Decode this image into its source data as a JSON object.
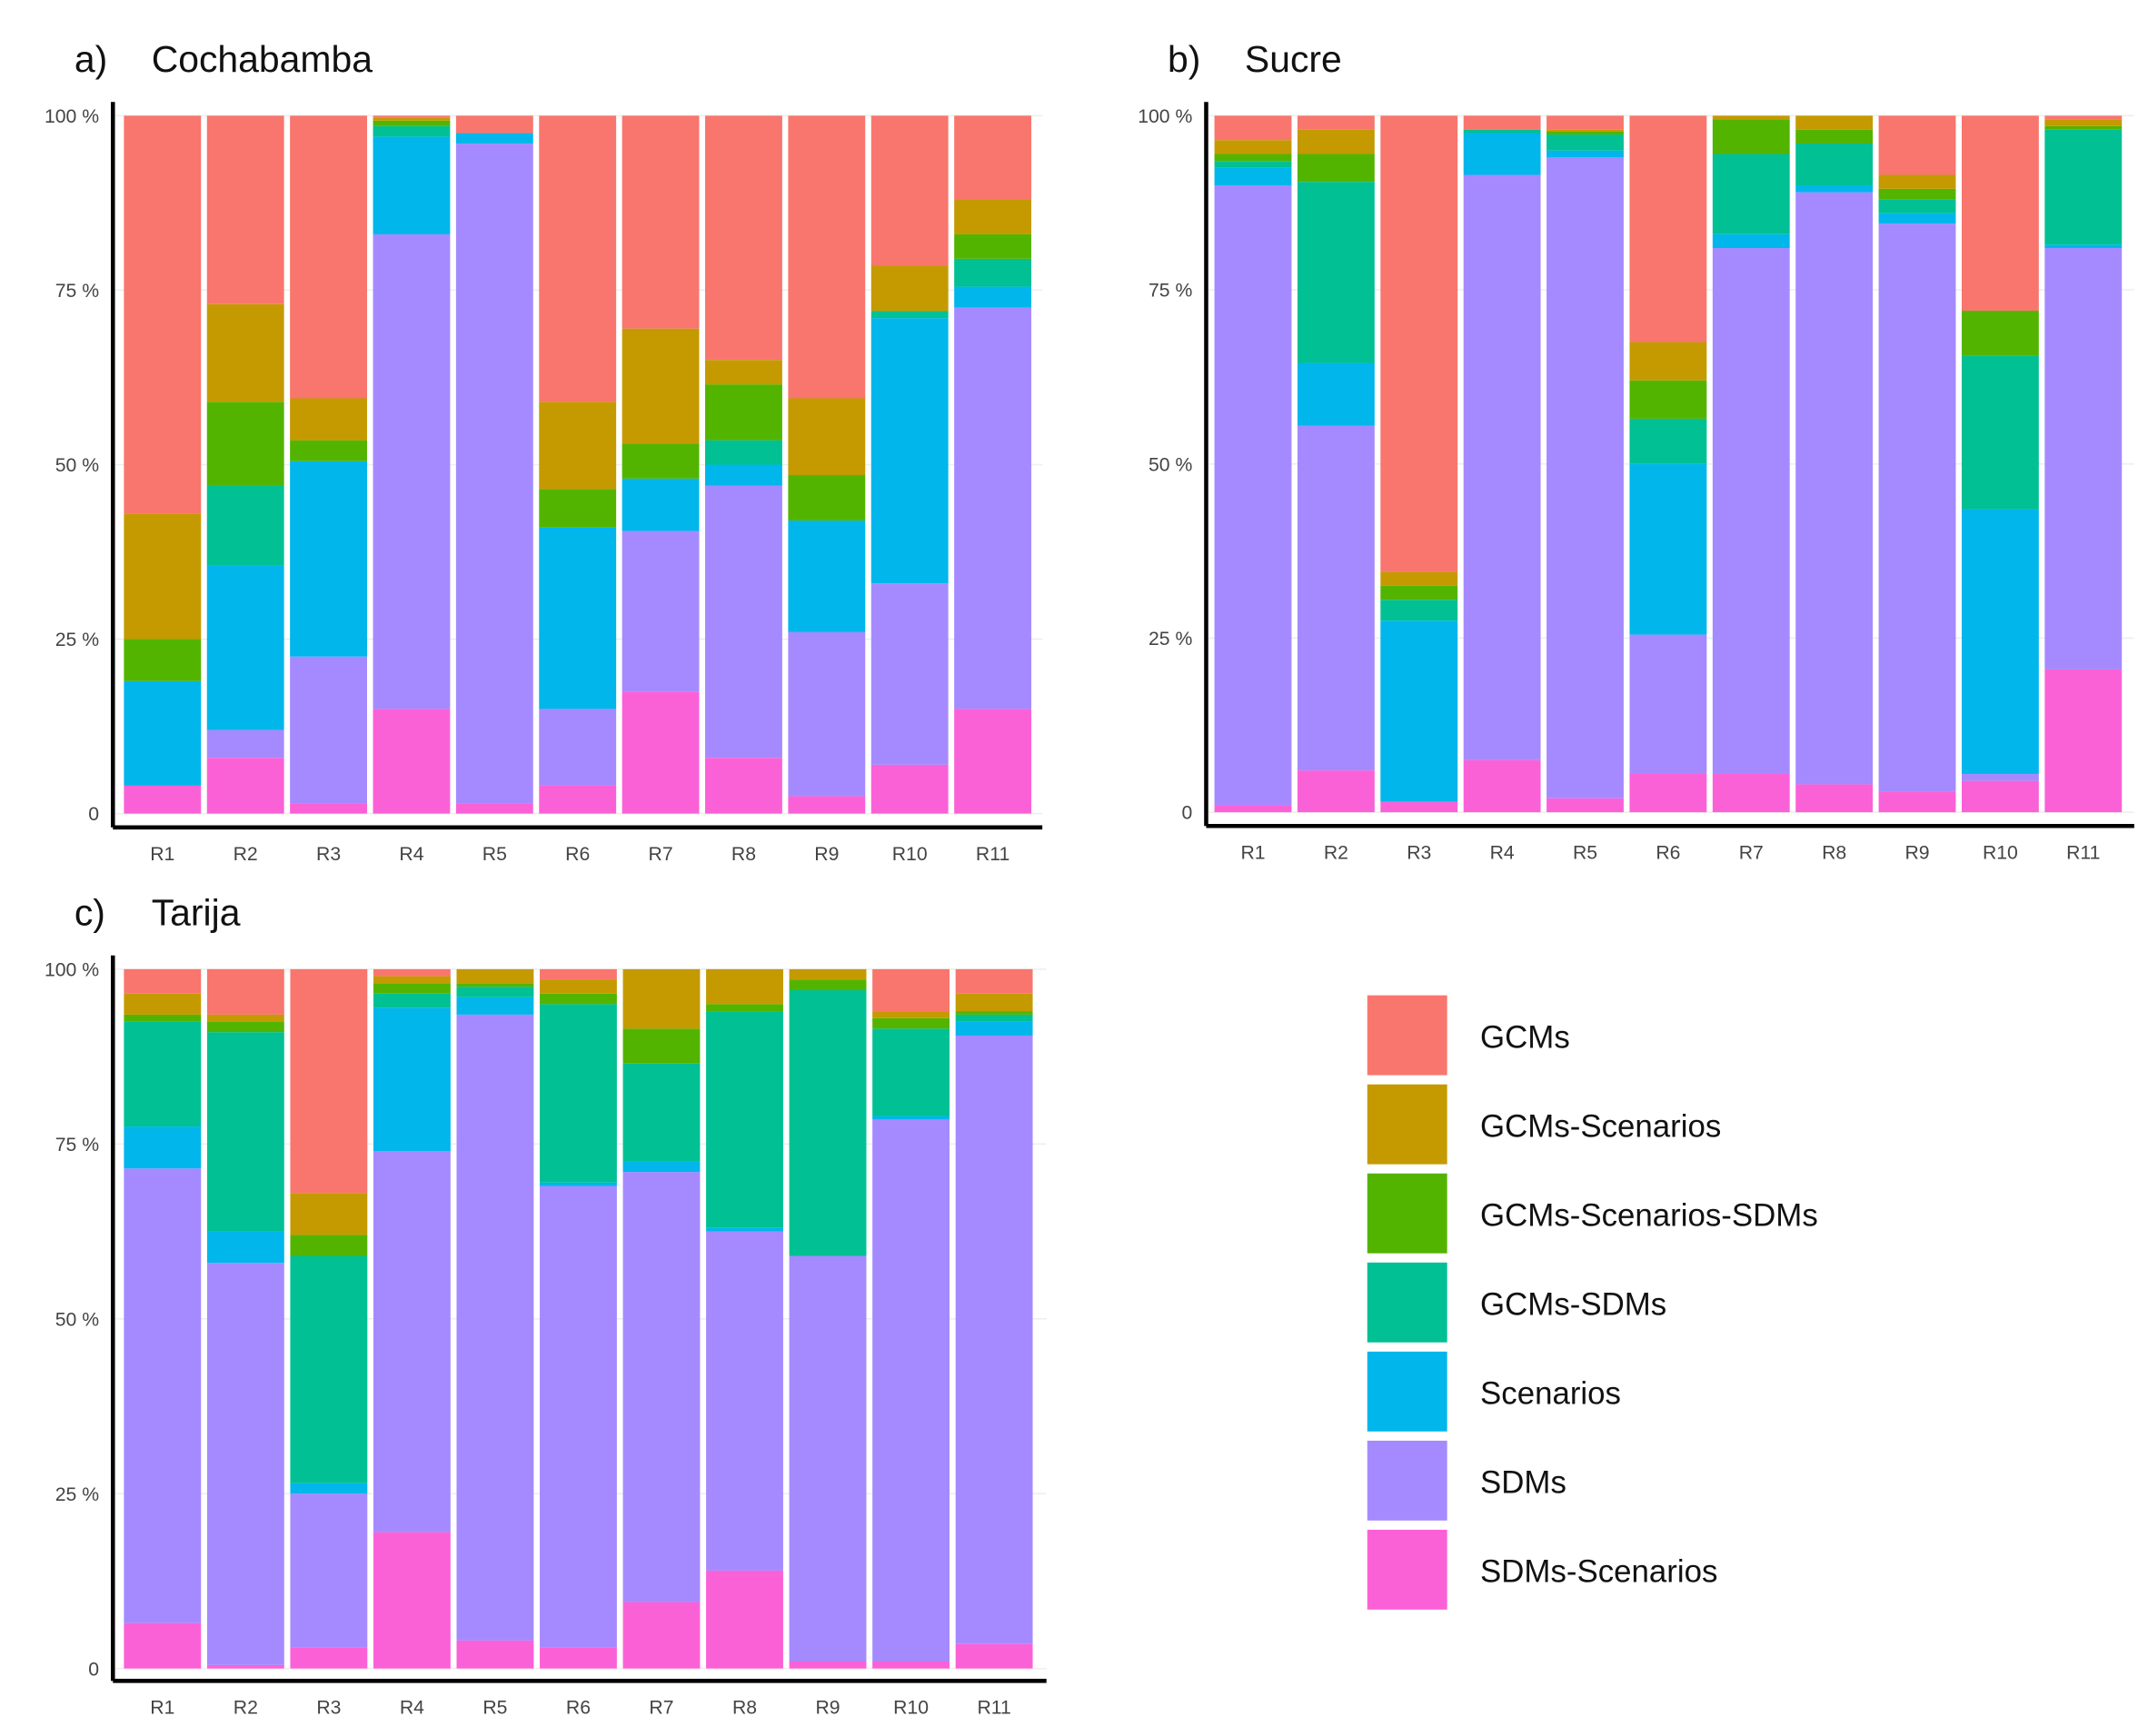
{
  "legend": {
    "entries": [
      "GCMs",
      "GCMs-Scenarios",
      "GCMs-Scenarios-SDMs",
      "GCMs-SDMs",
      "Scenarios",
      "SDMs",
      "SDMs-Scenarios"
    ],
    "colors": {
      "GCMs": "#F8766D",
      "GCMs-Scenarios": "#C49A00",
      "GCMs-Scenarios-SDMs": "#53B400",
      "GCMs-SDMs": "#00C094",
      "Scenarios": "#00B6EB",
      "SDMs": "#A58AFF",
      "SDMs-Scenarios": "#FB61D7"
    }
  },
  "chart_data": [
    {
      "type": "bar",
      "stacked": "percent",
      "panel_label": "a)",
      "title": "Cochabamba",
      "categories": [
        "R1",
        "R2",
        "R3",
        "R4",
        "R5",
        "R6",
        "R7",
        "R8",
        "R9",
        "R10",
        "R11"
      ],
      "ylim": [
        0,
        100
      ],
      "yticks": [
        "0",
        "25 %",
        "50 %",
        "75 %",
        "100 %"
      ],
      "grid": true,
      "series": [
        {
          "name": "SDMs-Scenarios",
          "values": [
            4,
            8,
            1.5,
            15,
            1.5,
            4,
            17.5,
            8,
            2.5,
            7,
            15
          ]
        },
        {
          "name": "SDMs",
          "values": [
            0,
            4,
            21,
            68,
            94.5,
            11,
            23,
            39,
            23.5,
            26,
            57.5
          ]
        },
        {
          "name": "Scenarios",
          "values": [
            15,
            23.5,
            28,
            14,
            1.5,
            26,
            7.5,
            3,
            16,
            38,
            3
          ]
        },
        {
          "name": "GCMs-SDMs",
          "values": [
            0,
            11.5,
            0,
            1.5,
            0,
            0,
            0,
            3.5,
            0,
            1,
            4
          ]
        },
        {
          "name": "GCMs-Scenarios-SDMs",
          "values": [
            6,
            12,
            3,
            0.8,
            0,
            5.5,
            5,
            8,
            6.5,
            0,
            3.5
          ]
        },
        {
          "name": "GCMs-Scenarios",
          "values": [
            18,
            14,
            6,
            0.4,
            0,
            12.5,
            16.5,
            3.5,
            11,
            6.5,
            5
          ]
        },
        {
          "name": "GCMs",
          "values": [
            57,
            27,
            40.5,
            0.3,
            2.5,
            41,
            30.5,
            35,
            40.5,
            21.5,
            12
          ]
        }
      ]
    },
    {
      "type": "bar",
      "stacked": "percent",
      "panel_label": "b)",
      "title": "Sucre",
      "categories": [
        "R1",
        "R2",
        "R3",
        "R4",
        "R5",
        "R6",
        "R7",
        "R8",
        "R9",
        "R10",
        "R11"
      ],
      "ylim": [
        0,
        100
      ],
      "yticks": [
        "0",
        "25 %",
        "50 %",
        "75 %",
        "100 %"
      ],
      "grid": true,
      "series": [
        {
          "name": "SDMs-Scenarios",
          "values": [
            1,
            6,
            1.5,
            7.5,
            2,
            5.5,
            5.5,
            4,
            3,
            4.5,
            20.5
          ]
        },
        {
          "name": "SDMs",
          "values": [
            89,
            49.5,
            0,
            84,
            92,
            20,
            75.5,
            85,
            81.5,
            1,
            60.5
          ]
        },
        {
          "name": "Scenarios",
          "values": [
            2.5,
            9,
            26,
            6,
            1,
            24.5,
            2,
            1,
            1.5,
            38,
            0.5
          ]
        },
        {
          "name": "GCMs-SDMs",
          "values": [
            1,
            26,
            3,
            0.5,
            2.3,
            6.5,
            11.5,
            6,
            2,
            22,
            16.5
          ]
        },
        {
          "name": "GCMs-Scenarios-SDMs",
          "values": [
            1,
            4,
            2,
            0,
            0.4,
            5.5,
            5,
            2,
            1.5,
            6.5,
            0.5
          ]
        },
        {
          "name": "GCMs-Scenarios",
          "values": [
            2,
            3.5,
            2,
            0,
            0.3,
            5.5,
            0.5,
            2,
            2,
            0,
            1
          ]
        },
        {
          "name": "GCMs",
          "values": [
            3.5,
            2,
            65.5,
            2,
            2,
            32.5,
            0,
            0,
            8.5,
            28,
            0.5
          ]
        }
      ]
    },
    {
      "type": "bar",
      "stacked": "percent",
      "panel_label": "c)",
      "title": "Tarija",
      "categories": [
        "R1",
        "R2",
        "R3",
        "R4",
        "R5",
        "R6",
        "R7",
        "R8",
        "R9",
        "R10",
        "R11"
      ],
      "ylim": [
        0,
        100
      ],
      "yticks": [
        "0",
        "25 %",
        "50 %",
        "75 %",
        "100 %"
      ],
      "grid": true,
      "series": [
        {
          "name": "SDMs-Scenarios",
          "values": [
            6.5,
            0.5,
            3,
            19.5,
            4,
            3,
            9.5,
            14,
            1,
            1,
            3.5
          ]
        },
        {
          "name": "SDMs",
          "values": [
            65,
            57.5,
            22,
            54.5,
            89.5,
            66,
            61.5,
            48.5,
            58,
            77.5,
            87
          ]
        },
        {
          "name": "Scenarios",
          "values": [
            6,
            4.5,
            1.5,
            20.5,
            2.5,
            0.5,
            1.5,
            0.5,
            0,
            0.5,
            2
          ]
        },
        {
          "name": "GCMs-SDMs",
          "values": [
            15,
            28.5,
            32.5,
            2,
            1.5,
            25.5,
            14,
            31,
            38,
            12.5,
            1
          ]
        },
        {
          "name": "GCMs-Scenarios-SDMs",
          "values": [
            1,
            1.5,
            3,
            1.5,
            0.5,
            1.5,
            5,
            1,
            1.5,
            1.5,
            0.5
          ]
        },
        {
          "name": "GCMs-Scenarios",
          "values": [
            3,
            1,
            6,
            1,
            2,
            2,
            8.5,
            5,
            1.5,
            1,
            2.5
          ]
        },
        {
          "name": "GCMs",
          "values": [
            3.5,
            6.5,
            32,
            1,
            0,
            1.5,
            0,
            0,
            0,
            6,
            3.5
          ]
        }
      ]
    }
  ]
}
